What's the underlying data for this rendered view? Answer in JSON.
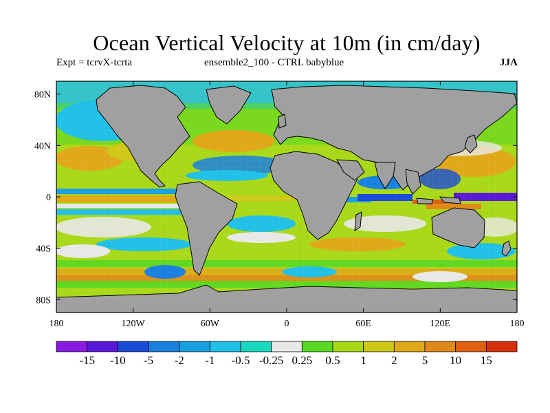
{
  "title": "Ocean Vertical Velocity at 10m (in cm/day)",
  "subtitle_left": "Expt = tcrvX-tcrta",
  "subtitle_center": "ensemble2_100 - CTRL babyblue",
  "season": "JJA",
  "map": {
    "lon_range": [
      -180,
      180
    ],
    "lat_range": [
      -90,
      90
    ],
    "land_color": "#a0a0a0",
    "coast_color": "#000000",
    "x_ticks": [
      {
        "value": -180,
        "label": "180"
      },
      {
        "value": -120,
        "label": "120W"
      },
      {
        "value": -60,
        "label": "60W"
      },
      {
        "value": 0,
        "label": "0"
      },
      {
        "value": 60,
        "label": "60E"
      },
      {
        "value": 120,
        "label": "120E"
      },
      {
        "value": 180,
        "label": "180"
      }
    ],
    "y_ticks": [
      {
        "value": 80,
        "label": "80N"
      },
      {
        "value": 40,
        "label": "40N"
      },
      {
        "value": 0,
        "label": "0"
      },
      {
        "value": -40,
        "label": "40S"
      },
      {
        "value": -80,
        "label": "80S"
      }
    ]
  },
  "colorbar": {
    "colors": [
      "#8a1ae0",
      "#5a18d8",
      "#1a4ad8",
      "#1a80e0",
      "#18a0e0",
      "#20c0e8",
      "#18d8c0",
      "#e8e8e8",
      "#58d820",
      "#a8d818",
      "#d0c818",
      "#e0a818",
      "#e08818",
      "#e06010",
      "#d83008"
    ],
    "labels": [
      "-15",
      "-10",
      "-5",
      "-2",
      "-1",
      "-0.5",
      "-0.25",
      "0.25",
      "0.5",
      "1",
      "2",
      "5",
      "10",
      "15"
    ]
  }
}
